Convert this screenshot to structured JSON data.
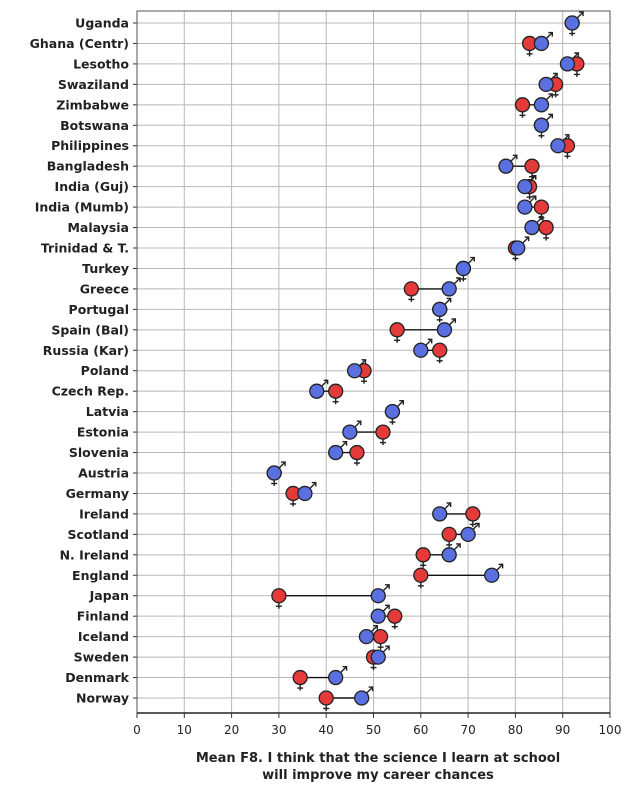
{
  "chart_data": {
    "type": "dot-plot",
    "title": "",
    "xlabel_line1": "Mean F8. I think that the science I learn at school",
    "xlabel_line2": "will improve my career chances",
    "xlim": [
      0,
      100
    ],
    "xticks": [
      0,
      10,
      20,
      30,
      40,
      50,
      60,
      70,
      80,
      90,
      100
    ],
    "grid": true,
    "series": [
      {
        "name": "boys",
        "color": "#5a6fe0"
      },
      {
        "name": "girls",
        "color": "#e53a3a"
      }
    ],
    "markers": {
      "boys_symbol": "♂",
      "girls_symbol": "♀"
    },
    "categories": [
      "Uganda",
      "Ghana (Centr)",
      "Lesotho",
      "Swaziland",
      "Zimbabwe",
      "Botswana",
      "Philippines",
      "Bangladesh",
      "India (Guj)",
      "India (Mumb)",
      "Malaysia",
      "Trinidad & T.",
      "Turkey",
      "Greece",
      "Portugal",
      "Spain (Bal)",
      "Russia (Kar)",
      "Poland",
      "Czech Rep.",
      "Latvia",
      "Estonia",
      "Slovenia",
      "Austria",
      "Germany",
      "Ireland",
      "Scotland",
      "N. Ireland",
      "England",
      "Japan",
      "Finland",
      "Iceland",
      "Sweden",
      "Denmark",
      "Norway"
    ],
    "boys": [
      92,
      85.5,
      91,
      86.5,
      85.5,
      85.5,
      89,
      78,
      82,
      82,
      83.5,
      80.5,
      69,
      66,
      64,
      65,
      60,
      46,
      38,
      54,
      45,
      42,
      29,
      35.5,
      64,
      70,
      66,
      75,
      51,
      51,
      48.5,
      51,
      42,
      47.5
    ],
    "girls": [
      92,
      83,
      93,
      88.5,
      81.5,
      85.5,
      91,
      83.5,
      83,
      85.5,
      86.5,
      80,
      69,
      58,
      64,
      55,
      64,
      48,
      42,
      54,
      52,
      46.5,
      29,
      33,
      71,
      66,
      60.5,
      60,
      30,
      54.5,
      51.5,
      50,
      34.5,
      40
    ]
  }
}
